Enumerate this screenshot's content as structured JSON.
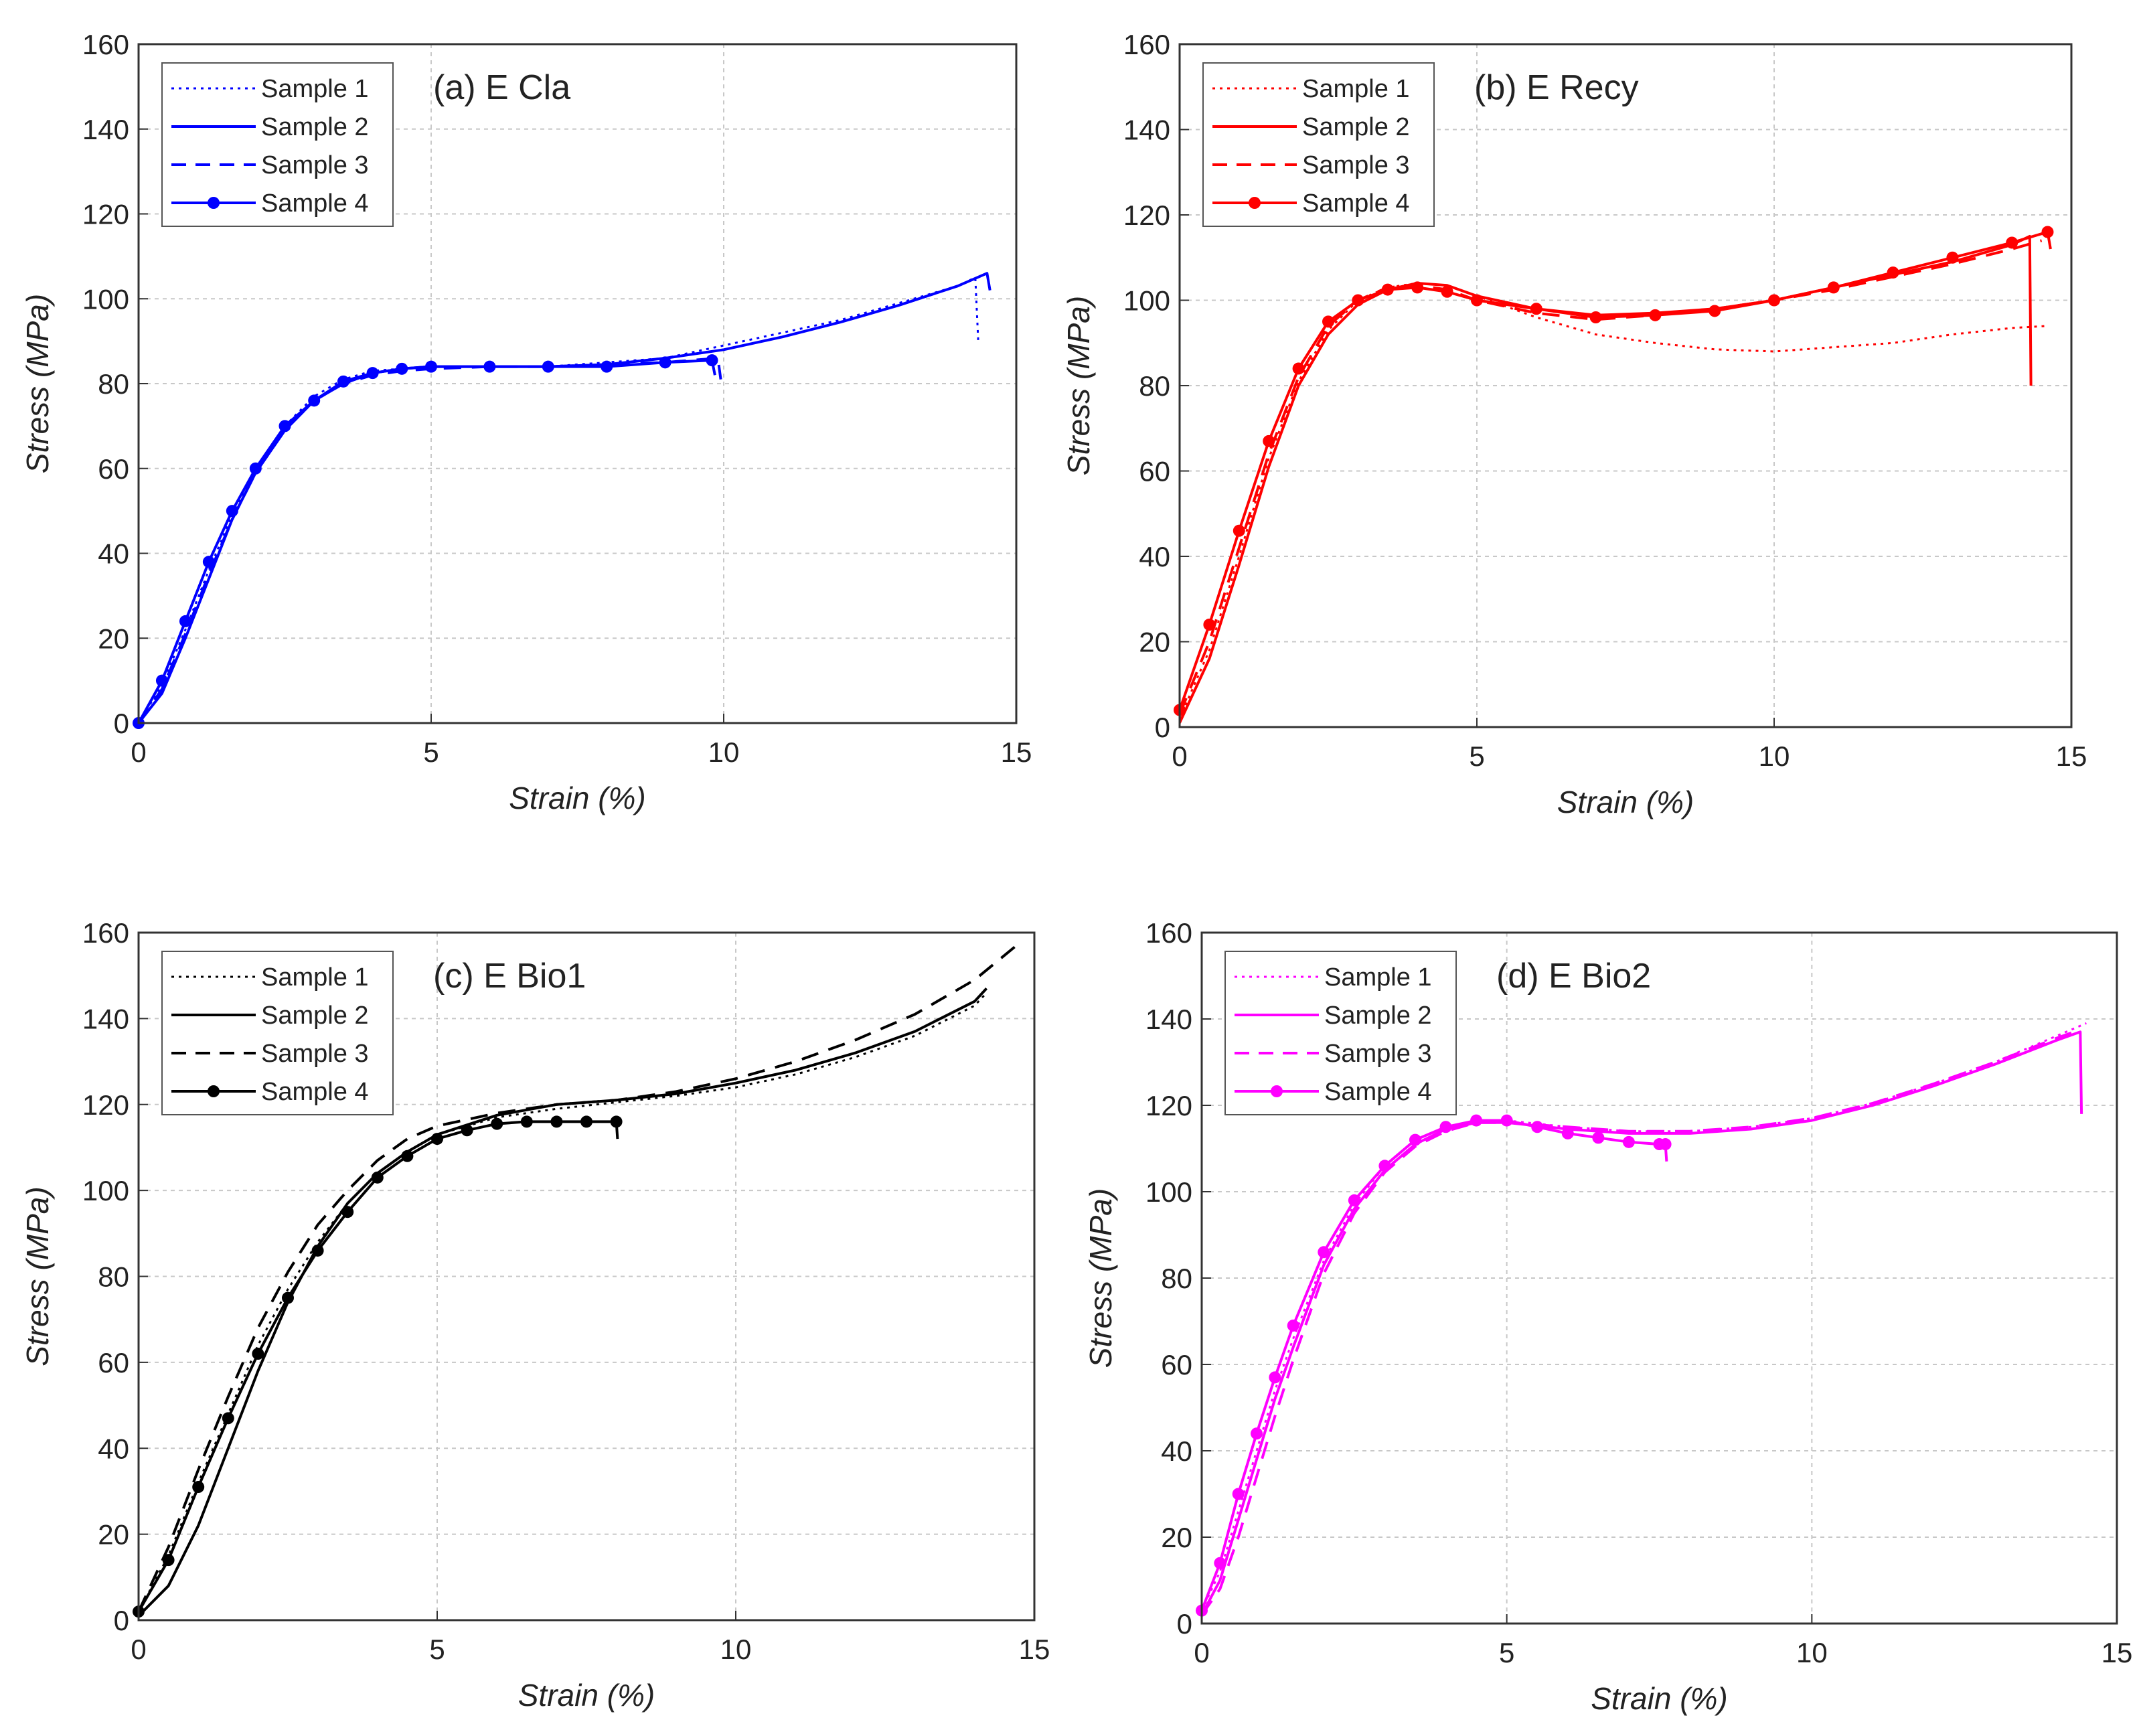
{
  "chart_data": [
    {
      "type": "line",
      "panel_label": "(a) E Cla",
      "xlabel": "Strain (%)",
      "ylabel": "Stress (MPa)",
      "xlim": [
        0,
        15
      ],
      "ylim": [
        0,
        160
      ],
      "xticks": [
        "0",
        "5",
        "10",
        "15"
      ],
      "yticks": [
        "0",
        "20",
        "40",
        "60",
        "80",
        "100",
        "120",
        "140",
        "160"
      ],
      "grid": true,
      "legend_position": "top-left",
      "color": "#0000ff",
      "series": [
        {
          "name": "Sample 1",
          "style": "dotted",
          "x": [
            0,
            0.4,
            0.8,
            1.2,
            1.6,
            2.0,
            2.5,
            3.0,
            3.5,
            4.0,
            4.5,
            5.0,
            6.0,
            7.0,
            8.0,
            9.0,
            10.0,
            11.0,
            12.0,
            13.0,
            14.0,
            14.3,
            14.35
          ],
          "y": [
            0,
            9,
            22,
            36,
            49,
            60,
            70,
            77,
            81,
            83,
            83.5,
            84,
            84,
            84,
            85,
            86,
            89,
            92,
            95,
            99,
            103,
            105,
            90
          ]
        },
        {
          "name": "Sample 2",
          "style": "solid",
          "x": [
            0,
            0.4,
            0.8,
            1.2,
            1.6,
            2.0,
            2.5,
            3.0,
            3.5,
            4.0,
            4.5,
            5.0,
            6.0,
            7.0,
            8.0,
            9.0,
            10.0,
            11.0,
            12.0,
            13.0,
            14.0,
            14.5,
            14.55
          ],
          "y": [
            0,
            7,
            20,
            34,
            48,
            59,
            69,
            76,
            80,
            82.5,
            83.5,
            84,
            84,
            84,
            84.5,
            86,
            88,
            91,
            94.5,
            98.5,
            103,
            106,
            102
          ]
        },
        {
          "name": "Sample 3",
          "style": "dashed",
          "x": [
            0,
            0.4,
            0.8,
            1.2,
            1.6,
            2.0,
            2.5,
            3.0,
            3.5,
            4.0,
            4.5,
            5.0,
            6.0,
            7.0,
            8.0,
            9.0,
            9.9,
            9.95
          ],
          "y": [
            0,
            8,
            21,
            35,
            48,
            59,
            69,
            76,
            80,
            82,
            83,
            83.5,
            84,
            84,
            84.5,
            85,
            86,
            81
          ]
        },
        {
          "name": "Sample 4",
          "style": "solid-marker",
          "x": [
            0,
            0.4,
            0.8,
            1.2,
            1.6,
            2.0,
            2.5,
            3.0,
            3.5,
            4.0,
            4.5,
            5.0,
            6.0,
            7.0,
            8.0,
            9.0,
            9.8,
            9.85
          ],
          "y": [
            0,
            10,
            24,
            38,
            50,
            60,
            70,
            76,
            80.5,
            82.5,
            83.5,
            84,
            84,
            84,
            84,
            85,
            85.5,
            82
          ]
        }
      ]
    },
    {
      "type": "line",
      "panel_label": "(b) E Recy",
      "xlabel": "Strain (%)",
      "ylabel": "Stress (MPa)",
      "xlim": [
        0,
        15
      ],
      "ylim": [
        0,
        160
      ],
      "xticks": [
        "0",
        "5",
        "10",
        "15"
      ],
      "yticks": [
        "0",
        "20",
        "40",
        "60",
        "80",
        "100",
        "120",
        "140",
        "160"
      ],
      "grid": true,
      "legend_position": "top-left",
      "color": "#ff0000",
      "series": [
        {
          "name": "Sample 1",
          "style": "dotted",
          "x": [
            0,
            0.5,
            1.0,
            1.5,
            2.0,
            2.5,
            3.0,
            3.5,
            4.0,
            4.5,
            5.0,
            6.0,
            7.0,
            8.0,
            9.0,
            10.0,
            11.0,
            12.0,
            13.0,
            14.0,
            14.6
          ],
          "y": [
            2,
            18,
            40,
            63,
            81,
            93,
            100,
            103,
            104,
            103.5,
            101,
            96,
            92,
            90,
            88.5,
            88,
            89,
            90,
            92,
            93.5,
            94
          ]
        },
        {
          "name": "Sample 2",
          "style": "solid",
          "x": [
            0,
            0.5,
            1.0,
            1.5,
            2.0,
            2.5,
            3.0,
            3.5,
            4.0,
            4.5,
            5.0,
            6.0,
            7.0,
            8.0,
            9.0,
            10.0,
            11.0,
            12.0,
            13.0,
            14.0,
            14.3,
            14.32
          ],
          "y": [
            1,
            16,
            38,
            61,
            80,
            92,
            99,
            102.5,
            104,
            103.5,
            101,
            98,
            96.5,
            97,
            98,
            100,
            103,
            106,
            109,
            113,
            115,
            80
          ]
        },
        {
          "name": "Sample 3",
          "style": "dashed",
          "x": [
            0,
            0.5,
            1.0,
            1.5,
            2.0,
            2.5,
            3.0,
            3.5,
            4.0,
            4.5,
            5.0,
            6.0,
            7.0,
            8.0,
            9.0,
            10.0,
            11.0,
            12.0,
            13.0,
            14.0,
            14.5
          ],
          "y": [
            3,
            20,
            42,
            64,
            82,
            94,
            100,
            103,
            103.5,
            102.5,
            100,
            97,
            95.5,
            96.5,
            98,
            100,
            102.5,
            105.5,
            108.5,
            112,
            114
          ]
        },
        {
          "name": "Sample 4",
          "style": "solid-marker",
          "x": [
            0,
            0.5,
            1.0,
            1.5,
            2.0,
            2.5,
            3.0,
            3.5,
            4.0,
            4.5,
            5.0,
            6.0,
            7.0,
            8.0,
            9.0,
            10.0,
            11.0,
            12.0,
            13.0,
            14.0,
            14.6,
            14.65
          ],
          "y": [
            4,
            24,
            46,
            67,
            84,
            95,
            100,
            102.5,
            103,
            102,
            100,
            98,
            96,
            96.5,
            97.5,
            100,
            103,
            106.5,
            110,
            113.5,
            116,
            112
          ]
        }
      ]
    },
    {
      "type": "line",
      "panel_label": "(c) E Bio1",
      "xlabel": "Strain (%)",
      "ylabel": "Stress (MPa)",
      "xlim": [
        0,
        15
      ],
      "ylim": [
        0,
        160
      ],
      "xticks": [
        "0",
        "5",
        "10",
        "15"
      ],
      "yticks": [
        "0",
        "20",
        "40",
        "60",
        "80",
        "100",
        "120",
        "140",
        "160"
      ],
      "grid": true,
      "legend_position": "top-left",
      "color": "#000000",
      "series": [
        {
          "name": "Sample 1",
          "style": "dotted",
          "x": [
            0,
            0.5,
            1.0,
            1.5,
            2.0,
            2.5,
            3.0,
            3.5,
            4.0,
            4.5,
            5.0,
            6.0,
            7.0,
            8.0,
            9.0,
            10.0,
            11.0,
            12.0,
            13.0,
            14.0,
            14.2
          ],
          "y": [
            2,
            15,
            32,
            48,
            64,
            77,
            88,
            97,
            104,
            109,
            113,
            117,
            119,
            120.5,
            122,
            124,
            127,
            131,
            136,
            143,
            146
          ]
        },
        {
          "name": "Sample 2",
          "style": "solid",
          "x": [
            0,
            0.5,
            1.0,
            1.5,
            2.0,
            2.5,
            3.0,
            3.5,
            4.0,
            4.5,
            5.0,
            6.0,
            7.0,
            8.0,
            9.0,
            10.0,
            11.0,
            12.0,
            13.0,
            14.0,
            14.2
          ],
          "y": [
            1,
            8,
            22,
            40,
            58,
            74,
            87,
            97,
            104,
            109,
            113,
            117.5,
            120,
            121,
            122.5,
            125,
            128,
            132,
            137,
            144,
            147
          ]
        },
        {
          "name": "Sample 3",
          "style": "dashed",
          "x": [
            0,
            0.5,
            1.0,
            1.5,
            2.0,
            2.5,
            3.0,
            3.5,
            4.0,
            4.5,
            5.0,
            6.0,
            7.0,
            8.0,
            9.0,
            10.0,
            11.0,
            12.0,
            13.0,
            14.0,
            14.7
          ],
          "y": [
            2,
            17,
            35,
            52,
            68,
            81,
            92,
            100,
            107,
            112,
            115,
            118,
            120,
            121,
            123,
            126,
            130,
            135,
            141,
            149,
            157
          ]
        },
        {
          "name": "Sample 4",
          "style": "solid-marker",
          "x": [
            0,
            0.5,
            1.0,
            1.5,
            2.0,
            2.5,
            3.0,
            3.5,
            4.0,
            4.5,
            5.0,
            5.5,
            6.0,
            6.5,
            7.0,
            7.5,
            8.0,
            8.02
          ],
          "y": [
            2,
            14,
            31,
            47,
            62,
            75,
            86,
            95,
            103,
            108,
            112,
            114,
            115.5,
            116,
            116,
            116,
            116,
            112
          ]
        }
      ]
    },
    {
      "type": "line",
      "panel_label": "(d) E Bio2",
      "xlabel": "Strain (%)",
      "ylabel": "Stress (MPa)",
      "xlim": [
        0,
        15
      ],
      "ylim": [
        0,
        160
      ],
      "xticks": [
        "0",
        "5",
        "10",
        "15"
      ],
      "yticks": [
        "0",
        "20",
        "40",
        "60",
        "80",
        "100",
        "120",
        "140",
        "160"
      ],
      "grid": true,
      "legend_position": "top-left",
      "color": "#ff00ff",
      "series": [
        {
          "name": "Sample 1",
          "style": "dotted",
          "x": [
            0,
            0.3,
            0.6,
            0.9,
            1.2,
            1.5,
            2.0,
            2.5,
            3.0,
            3.5,
            4.0,
            4.5,
            5.0,
            6.0,
            7.0,
            8.0,
            9.0,
            10.0,
            11.0,
            12.0,
            13.0,
            14.0,
            14.5
          ],
          "y": [
            3,
            12,
            26,
            40,
            54,
            66,
            84,
            97,
            106,
            112,
            115,
            116.5,
            116.5,
            115,
            114,
            114,
            115,
            117,
            120.5,
            125,
            130,
            136,
            139
          ]
        },
        {
          "name": "Sample 2",
          "style": "solid",
          "x": [
            0,
            0.3,
            0.6,
            0.9,
            1.2,
            1.5,
            2.0,
            2.5,
            3.0,
            3.5,
            4.0,
            4.5,
            5.0,
            6.0,
            7.0,
            8.0,
            9.0,
            10.0,
            11.0,
            12.0,
            13.0,
            14.0,
            14.4,
            14.42
          ],
          "y": [
            2,
            10,
            24,
            38,
            52,
            64,
            83,
            96,
            105,
            111,
            114.5,
            116,
            116,
            114.5,
            113.5,
            113.5,
            114.5,
            116.5,
            120,
            124.5,
            129.5,
            135,
            137,
            118
          ]
        },
        {
          "name": "Sample 3",
          "style": "dashed",
          "x": [
            0,
            0.3,
            0.6,
            0.9,
            1.2,
            1.5,
            2.0,
            2.5,
            3.0,
            3.5,
            4.0,
            4.5,
            5.0,
            6.0,
            7.0,
            8.0,
            9.0,
            10.0,
            11.0,
            12.0,
            13.0,
            14.0,
            14.3
          ],
          "y": [
            2,
            8,
            20,
            34,
            48,
            61,
            81,
            95,
            104.5,
            110.5,
            114,
            116,
            116,
            115,
            114,
            114,
            115,
            117,
            120.5,
            125,
            130,
            135.5,
            137
          ]
        },
        {
          "name": "Sample 4",
          "style": "solid-marker",
          "x": [
            0,
            0.3,
            0.6,
            0.9,
            1.2,
            1.5,
            2.0,
            2.5,
            3.0,
            3.5,
            4.0,
            4.5,
            5.0,
            5.5,
            6.0,
            6.5,
            7.0,
            7.5,
            7.6,
            7.62
          ],
          "y": [
            3,
            14,
            30,
            44,
            57,
            69,
            86,
            98,
            106,
            112,
            115,
            116.5,
            116.5,
            115,
            113.5,
            112.5,
            111.5,
            111,
            111,
            107
          ]
        }
      ]
    }
  ]
}
